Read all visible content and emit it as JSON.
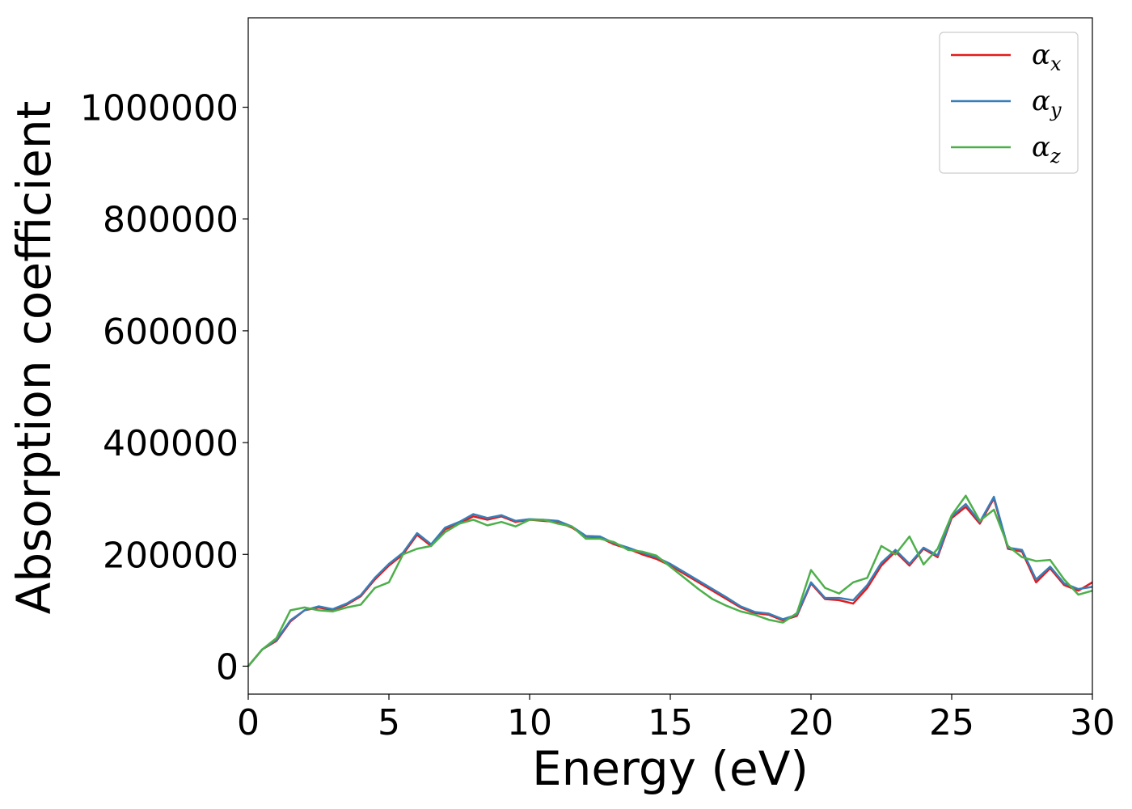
{
  "chart_data": {
    "type": "line",
    "xlabel": "Energy (eV)",
    "ylabel": "Absorption coefficient",
    "xlim": [
      0,
      30
    ],
    "ylim": [
      -50000,
      1160000
    ],
    "xticks": [
      0,
      5,
      10,
      15,
      20,
      25,
      30
    ],
    "xtick_labels": [
      "0",
      "5",
      "10",
      "15",
      "20",
      "25",
      "30"
    ],
    "yticks": [
      0,
      200000,
      400000,
      600000,
      800000,
      1000000
    ],
    "ytick_labels": [
      "0",
      "200000",
      "400000",
      "600000",
      "800000",
      "1000000"
    ],
    "grid": false,
    "legend_position": "top-right",
    "series": [
      {
        "name": "α_x",
        "legend_base": "α",
        "legend_sub": "x",
        "color": "#e41a1c",
        "x": [
          0,
          0.5,
          1,
          1.5,
          2,
          2.5,
          3,
          3.5,
          4,
          4.5,
          5,
          5.5,
          6,
          6.5,
          7,
          7.5,
          8,
          8.5,
          9,
          9.5,
          10,
          10.5,
          11,
          11.5,
          12,
          12.5,
          13,
          13.5,
          14,
          14.5,
          15,
          15.5,
          16,
          16.5,
          17,
          17.5,
          18,
          18.5,
          19,
          19.5,
          20,
          20.5,
          21,
          21.5,
          22,
          22.5,
          23,
          23.5,
          24,
          24.5,
          25,
          25.5,
          26,
          26.5,
          27,
          27.5,
          28,
          28.5,
          29,
          29.5,
          30
        ],
        "y": [
          0,
          30000,
          45000,
          80000,
          100000,
          105000,
          100000,
          110000,
          125000,
          155000,
          180000,
          200000,
          235000,
          215000,
          245000,
          255000,
          268000,
          262000,
          268000,
          258000,
          262000,
          260000,
          258000,
          248000,
          232000,
          230000,
          218000,
          210000,
          200000,
          192000,
          180000,
          165000,
          150000,
          135000,
          120000,
          105000,
          95000,
          92000,
          82000,
          90000,
          148000,
          120000,
          118000,
          112000,
          140000,
          180000,
          205000,
          180000,
          210000,
          195000,
          265000,
          285000,
          255000,
          300000,
          210000,
          205000,
          150000,
          175000,
          145000,
          135000,
          150000
        ]
      },
      {
        "name": "α_y",
        "legend_base": "α",
        "legend_sub": "y",
        "color": "#377eb8",
        "x": [
          0,
          0.5,
          1,
          1.5,
          2,
          2.5,
          3,
          3.5,
          4,
          4.5,
          5,
          5.5,
          6,
          6.5,
          7,
          7.5,
          8,
          8.5,
          9,
          9.5,
          10,
          10.5,
          11,
          11.5,
          12,
          12.5,
          13,
          13.5,
          14,
          14.5,
          15,
          15.5,
          16,
          16.5,
          17,
          17.5,
          18,
          18.5,
          19,
          19.5,
          20,
          20.5,
          21,
          21.5,
          22,
          22.5,
          23,
          23.5,
          24,
          24.5,
          25,
          25.5,
          26,
          26.5,
          27,
          27.5,
          28,
          28.5,
          29,
          29.5,
          30
        ],
        "y": [
          0,
          30000,
          47000,
          82000,
          100000,
          107000,
          102000,
          112000,
          127000,
          158000,
          183000,
          203000,
          238000,
          218000,
          248000,
          258000,
          272000,
          265000,
          270000,
          260000,
          263000,
          262000,
          260000,
          250000,
          233000,
          232000,
          220000,
          212000,
          203000,
          195000,
          183000,
          168000,
          153000,
          138000,
          123000,
          107000,
          97000,
          94000,
          84000,
          92000,
          150000,
          122000,
          122000,
          118000,
          145000,
          185000,
          208000,
          183000,
          212000,
          198000,
          268000,
          290000,
          258000,
          303000,
          212000,
          208000,
          155000,
          178000,
          148000,
          138000,
          142000
        ]
      },
      {
        "name": "α_z",
        "legend_base": "α",
        "legend_sub": "z",
        "color": "#4daf4a",
        "x": [
          0,
          0.5,
          1,
          1.5,
          2,
          2.5,
          3,
          3.5,
          4,
          4.5,
          5,
          5.5,
          6,
          6.5,
          7,
          7.5,
          8,
          8.5,
          9,
          9.5,
          10,
          10.5,
          11,
          11.5,
          12,
          12.5,
          13,
          13.5,
          14,
          14.5,
          15,
          15.5,
          16,
          16.5,
          17,
          17.5,
          18,
          18.5,
          19,
          19.5,
          20,
          20.5,
          21,
          21.5,
          22,
          22.5,
          23,
          23.5,
          24,
          24.5,
          25,
          25.5,
          26,
          26.5,
          27,
          27.5,
          28,
          28.5,
          29,
          29.5,
          30
        ],
        "y": [
          0,
          30000,
          50000,
          100000,
          105000,
          100000,
          98000,
          105000,
          110000,
          140000,
          150000,
          200000,
          210000,
          215000,
          240000,
          255000,
          262000,
          252000,
          258000,
          250000,
          262000,
          262000,
          255000,
          250000,
          228000,
          228000,
          222000,
          208000,
          205000,
          198000,
          178000,
          158000,
          138000,
          120000,
          108000,
          98000,
          92000,
          83000,
          78000,
          95000,
          172000,
          140000,
          130000,
          150000,
          158000,
          215000,
          200000,
          232000,
          182000,
          210000,
          270000,
          305000,
          260000,
          280000,
          215000,
          195000,
          188000,
          190000,
          155000,
          128000,
          135000
        ]
      }
    ]
  }
}
